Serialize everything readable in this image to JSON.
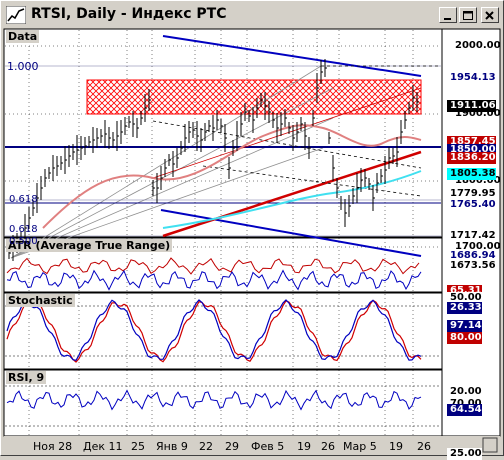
{
  "window": {
    "title": "RTSI, Daily - Индекс РТС",
    "controls": {
      "minimize": "minimize-icon",
      "maximize": "maximize-icon",
      "close": "close-icon"
    }
  },
  "panes": {
    "data": {
      "title": "Data",
      "axis_labels": [
        "2000.00",
        "1900.00",
        "1800.00",
        "1700.00"
      ],
      "price_tags": [
        {
          "text": "1954.13",
          "bg": "#ffffff",
          "fg": "#000080"
        },
        {
          "text": "1911.06",
          "bg": "#000000",
          "fg": "#ffffff"
        },
        {
          "text": "1857.45",
          "bg": "#c00000",
          "fg": "#ffffff"
        },
        {
          "text": "1850.00",
          "bg": "#000080",
          "fg": "#ffffff"
        },
        {
          "text": "1836.20",
          "bg": "#c00000",
          "fg": "#ffffff"
        },
        {
          "text": "1805.38",
          "bg": "#00ffff",
          "fg": "#000000"
        },
        {
          "text": "1779.95",
          "bg": "#ffffff",
          "fg": "#000000"
        },
        {
          "text": "1765.40",
          "bg": "#ffffff",
          "fg": "#000080"
        },
        {
          "text": "1717.42",
          "bg": "#ffffff",
          "fg": "#000000"
        },
        {
          "text": "1686.94",
          "bg": "#ffffff",
          "fg": "#000080"
        },
        {
          "text": "1673.56",
          "bg": "#ffffff",
          "fg": "#000000"
        }
      ],
      "fib_labels": [
        "1.000",
        "0.618",
        "0.500",
        "0.618"
      ]
    },
    "atr": {
      "title": "ATR (Average True Range)",
      "tags": [
        "65.31",
        "50.00",
        "26.33"
      ]
    },
    "stochastic": {
      "title": "Stochastic",
      "tags": [
        "97.14",
        "80.00",
        "20.00"
      ]
    },
    "rsi": {
      "title": "RSI, 9",
      "tags": [
        "70.00",
        "64.54",
        "25.00"
      ]
    }
  },
  "date_axis": [
    "Ноя 28",
    "Дек 11",
    "25",
    "Янв 9",
    "22",
    "29",
    "Фев 5",
    "19",
    "26",
    "Мар 5",
    "19",
    "26"
  ],
  "colors": {
    "candle": "#000000",
    "channel": "#0000c0",
    "trendline": "#d00000",
    "ma_slow": "#e08080",
    "ma_cyan": "#40e0f0",
    "zone": "#ff0000",
    "atr_red": "#c00000",
    "atr_blue": "#0000c0",
    "stoch_k": "#0000c0",
    "stoch_d": "#d00000",
    "rsi": "#0000c0"
  }
}
